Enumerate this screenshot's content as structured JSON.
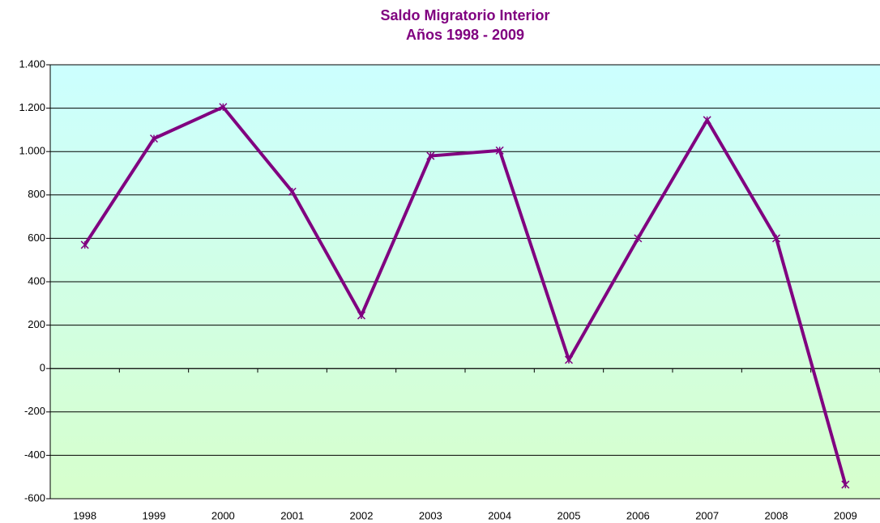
{
  "chart_data": {
    "type": "line",
    "title": "Saldo Migratorio Interior",
    "subtitle": "Años 1998 - 2009",
    "categories": [
      "1998",
      "1999",
      "2000",
      "2001",
      "2002",
      "2003",
      "2004",
      "2005",
      "2006",
      "2007",
      "2008",
      "2009"
    ],
    "series": [
      {
        "name": "Saldo Migratorio Interior",
        "color": "#800080",
        "values": [
          570,
          1060,
          1205,
          815,
          245,
          980,
          1005,
          40,
          600,
          1145,
          600,
          -535
        ]
      }
    ],
    "ylim": [
      -600,
      1400
    ],
    "yticks": [
      -600,
      -400,
      -200,
      0,
      200,
      400,
      600,
      800,
      {
        "value": 1000,
        "label": "1.000"
      },
      {
        "value": 1200,
        "label": "1.200"
      },
      {
        "value": 1400,
        "label": "1.400"
      }
    ],
    "grid": true
  }
}
